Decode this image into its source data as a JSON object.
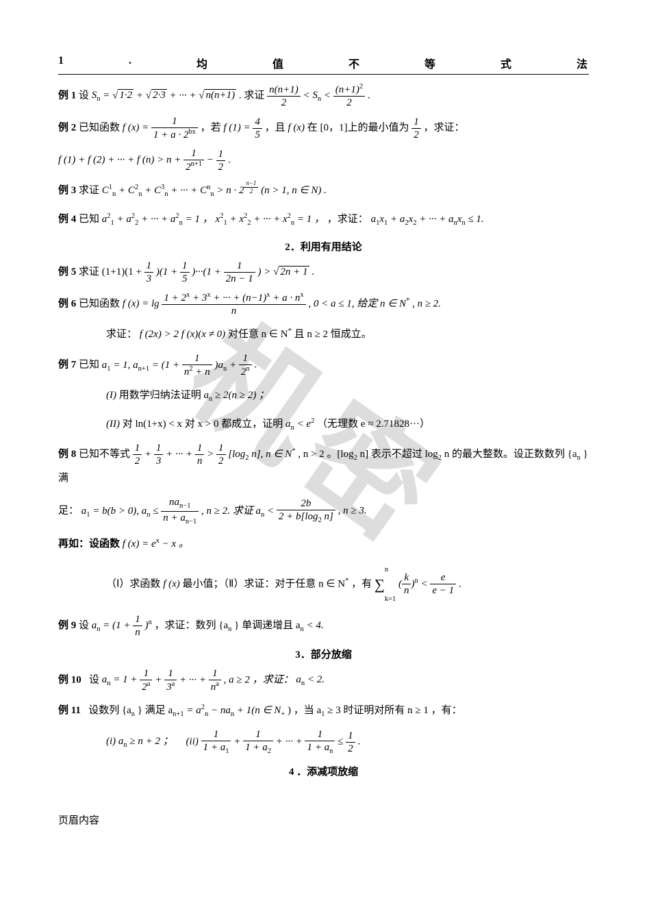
{
  "page": {
    "background_color": "#ffffff",
    "text_color": "#000000",
    "watermark_text": "机密",
    "watermark_color": "rgba(120,120,120,0.25)",
    "watermark_rotation_deg": 35,
    "body_fontsize": 15,
    "header_fontsize": 16
  },
  "section1": {
    "number": "1",
    "dot": ".",
    "c1": "均",
    "c2": "值",
    "c3": "不",
    "c4": "等",
    "c5": "式",
    "c6": "法"
  },
  "ex1": {
    "label": "例 1",
    "t1": "设 ",
    "sn": "S",
    "sub_n": "n",
    "eq": " = ",
    "r1": "1·2",
    "plus": " + ",
    "r2": "2·3",
    "dots": " + ··· + ",
    "rn": "n(n+1)",
    "period": ". 求证",
    "f1n": "n(n+1)",
    "f1d": "2",
    "lt1": " < ",
    "mid": "S",
    "lt2": " < ",
    "f2n": "(n+1)",
    "f2e": "2",
    "f2d": "2",
    "end": "."
  },
  "ex2": {
    "label": "例 2",
    "t1": "已知函数 ",
    "fx": "f (x) = ",
    "f1n": "1",
    "f1d1": "1 + a · 2",
    "f1exp": "bx",
    "t2": " ，若 ",
    "f1eq": "f (1) = ",
    "f2n": "4",
    "f2d": "5",
    "t3": " ，且 ",
    "fx2": "f (x)",
    "t4": " 在 [0，1]上的最小值为 ",
    "f3n": "1",
    "f3d": "2",
    "t5": " ，求证：",
    "line2a": "f (1) + f (2) + ··· + f (n) > n + ",
    "l2f1n": "1",
    "l2f1d": "2",
    "l2f1exp": "n+1",
    "l2minus": " − ",
    "l2f2n": "1",
    "l2f2d": "2",
    "l2end": "."
  },
  "ex3": {
    "label": "例 3",
    "t1": "求证 ",
    "c": "C",
    "sub": "n",
    "s1": "1",
    "s2": "2",
    "s3": "3",
    "sn": "n",
    "plus": " + ",
    "dots": " + ··· + ",
    "gt": " > n · 2",
    "expn": "n−1",
    "expd": "2",
    "t2": " (n > 1, n ∈ N) ."
  },
  "ex4": {
    "label": "例 4",
    "t1": "已知 ",
    "a": "a",
    "x": "x",
    "sq": "2",
    "s1": "1",
    "s2": "2",
    "sn": "n",
    "plus": " + ",
    "dots": " + ··· + ",
    "eq1": " = 1 ，",
    "t2": " ，求证：",
    "le": " ≤ 1."
  },
  "subsection2": "2．利用有用结论",
  "ex5": {
    "label": "例 5",
    "t1": "求证 (1+1)(1 + ",
    "f1n": "1",
    "f1d": "3",
    "t2": ")(1 + ",
    "f2n": "1",
    "f2d": "5",
    "t3": ")···(1 + ",
    "f3n": "1",
    "f3d": "2n − 1",
    "t4": ") > ",
    "sq": "2n + 1",
    "end": "."
  },
  "ex6": {
    "label": "例 6",
    "t1": "已知函数 ",
    "fx": "f (x) = lg",
    "fn": "1 + 2",
    "fx1": "x",
    "fplus": " + 3",
    "fdots": " + ··· + (n−1)",
    "fplus2": " + a · n",
    "fd": "n",
    "t2": ", 0 < a ≤ 1, 给定 n ∈ N",
    "star": "*",
    "t3": ", n ≥ 2.",
    "line2": "求证：",
    "l2a": "f (2x) > 2 f (x)(x ≠ 0)",
    "l2b": "对任意 n ∈ N",
    "l2c": " 且 n ≥ 2 恒成立。"
  },
  "ex7": {
    "label": "例 7",
    "t1": "已知 ",
    "a1": "a",
    "s1": "1",
    "eq1": " = 1, ",
    "an1": "a",
    "sn1": "n+1",
    "eq2": " = (1 + ",
    "f1n": "1",
    "f1d": "n",
    "f1d2": "2",
    "f1d3": " + n",
    "t2": ")a",
    "sn": "n",
    "plus": " + ",
    "f2n": "1",
    "f2d": "2",
    "f2e": "n",
    "end": ".",
    "p1label": "(I)",
    "p1": "用数学归纳法证明 ",
    "p1a": "a",
    "p1ge": " ≥ 2(n ≥ 2) ；",
    "p2label": "(II)",
    "p2a": "对 ln(1+x) < x 对 x > 0 都成立，证明 ",
    "p2b": "a",
    "p2c": " < e",
    "p2e": "2",
    "p2d": "（无理数 e ≈ 2.71828···）"
  },
  "ex8": {
    "label": "例 8",
    "t1": "已知不等式 ",
    "f1n": "1",
    "f1d": "2",
    "plus": " + ",
    "f2n": "1",
    "f2d": "3",
    "dots": " + ··· + ",
    "f3n": "1",
    "f3d": "n",
    "gt": " > ",
    "f4n": "1",
    "f4d": "2",
    "log": "[log",
    "s2": "2",
    "logn": " n], n ∈ N",
    "star": "*",
    "t2": ", n > 2 。[log",
    "t3": " n] 表示不超过 log",
    "t4": " n 的最大整数。设正数数列 {a",
    "sn": "n",
    "t5": "} 满",
    "line2a": "足：",
    "l2a1": "a",
    "l2s1": "1",
    "l2eq": " = b(b > 0), a",
    "l2sn": "n",
    "l2le": " ≤ ",
    "l2fn": "na",
    "l2fnsub": "n−1",
    "l2fd": "n + a",
    "l2t": ", n ≥ 2. 求证 a",
    "l2lt": " < ",
    "l2f2n": "2b",
    "l2f2d": "2 + b[log",
    "l2f2d2": " n]",
    "l2end": ", n ≥ 3.",
    "line3": "再如：设函数 ",
    "l3fx": "f (x) = e",
    "l3ex": "x",
    "l3minus": " − x 。",
    "line4p1": "（Ⅰ）求函数 ",
    "l4fx": "f (x)",
    "l4t1": " 最小值；（Ⅱ）求证：对于任意 n ∈ N",
    "l4t2": " ，有 ",
    "l4sum": "∑",
    "l4k1": "k=1",
    "l4kn": "n",
    "l4fn": "k",
    "l4fd": "n",
    "l4exp": "n",
    "l4lt": " < ",
    "l4en": "e",
    "l4ed": "e − 1",
    "l4end": " ."
  },
  "ex9": {
    "label": "例 9",
    "t1": "设 ",
    "an": "a",
    "sn": "n",
    "eq": " = (1 + ",
    "fn": "1",
    "fd": "n",
    "t2": ")",
    "exp": "n",
    "t3": " ，求证：数列 {a",
    "t4": "} 单调递增且 a",
    "lt": " < 4."
  },
  "subsection3": "3．部分放缩",
  "ex10": {
    "label": "例 10",
    "t1": "设 ",
    "an": "a",
    "sn": "n",
    "eq": " = 1 + ",
    "f1n": "1",
    "f1d": "2",
    "fa": "a",
    "plus": " + ",
    "f2d": "3",
    "dots": " + ··· + ",
    "f3d": "n",
    "t2": ", a ≥ 2 ，求证：",
    "t3": "a",
    "lt": " < 2."
  },
  "ex11": {
    "label": "例 11",
    "t1": "设数列 {a",
    "sn": "n",
    "t2": "} 满足 a",
    "sn1": "n+1",
    "eq": " = a",
    "sq": "2",
    "minus": " − na",
    "plus1": " + 1(n ∈ N",
    "sub_plus": "+",
    "t3": ") ，当 a",
    "s1": "1",
    "ge": " ≥ 3 时证明对所有 n ≥ 1 ，有：",
    "p1": "(i) a",
    "p1ge": " ≥ n + 2 ；",
    "p2": "(ii) ",
    "f1n": "1",
    "f1d": "1 + a",
    "fs1": "1",
    "fplus": " + ",
    "fs2": "2",
    "fdots": " + ··· + ",
    "fsn": "n",
    "le": " ≤ ",
    "f2n": "1",
    "f2d": "2",
    "end": " ."
  },
  "subsection4": "4 ．添减项放缩",
  "footer": "页眉内容"
}
